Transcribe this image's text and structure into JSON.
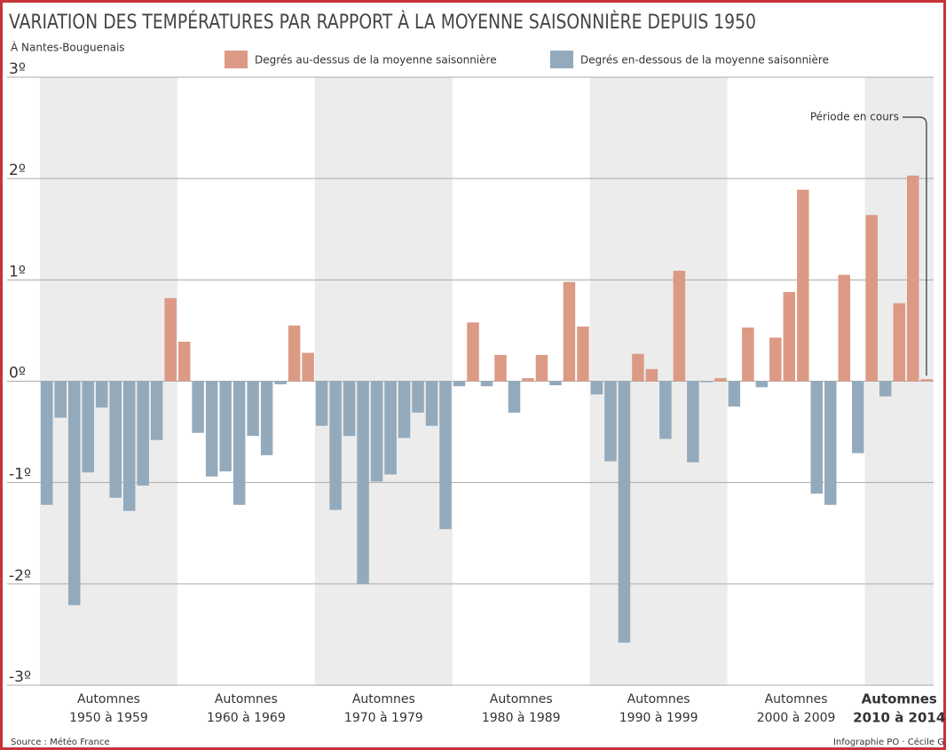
{
  "chart_data": {
    "type": "bar",
    "title": "VARIATION DES TEMPÉRATURES PAR RAPPORT À LA MOYENNE SAISONNIÈRE DEPUIS 1950",
    "subtitle": "À Nantes-Bouguenais",
    "legend": [
      {
        "label": "Degrés au-dessus de la moyenne saisonnière",
        "color": "#dc9a85"
      },
      {
        "label": "Degrés en-dessous de la moyenne saisonnière",
        "color": "#93aabc"
      }
    ],
    "values": [
      -1.22,
      -0.36,
      -2.21,
      -0.9,
      -0.26,
      -1.15,
      -1.28,
      -1.03,
      -0.58,
      0.82,
      0.39,
      -0.51,
      -0.94,
      -0.89,
      -1.22,
      -0.54,
      -0.73,
      -0.03,
      0.55,
      0.28,
      -0.44,
      -1.27,
      -0.54,
      -2.0,
      -0.99,
      -0.92,
      -0.56,
      -0.31,
      -0.44,
      -1.46,
      -0.05,
      0.58,
      -0.05,
      0.26,
      -0.31,
      0.03,
      0.26,
      -0.04,
      0.98,
      0.54,
      -0.13,
      -0.79,
      -2.58,
      0.27,
      0.12,
      -0.57,
      1.09,
      -0.8,
      -0.01,
      0.03,
      -0.25,
      0.53,
      -0.06,
      0.43,
      0.88,
      1.89,
      -1.11,
      -1.22,
      1.05,
      -0.71,
      1.64,
      -0.15,
      0.77,
      2.03,
      0.02
    ],
    "groups": [
      [
        "Automnes",
        "1950 à 1959"
      ],
      [
        "Automnes",
        "1960 à 1969"
      ],
      [
        "Automnes",
        "1970 à 1979"
      ],
      [
        "Automnes",
        "1980 à 1989"
      ],
      [
        "Automnes",
        "1990 à 1999"
      ],
      [
        "Automnes",
        "2000 à 2009"
      ],
      [
        "Automnes",
        "2010 à 2014"
      ]
    ],
    "ylim": [
      -3,
      3
    ],
    "yticks": [
      {
        "value": 3,
        "label": "3º"
      },
      {
        "value": 2,
        "label": "2º"
      },
      {
        "value": 1,
        "label": "1º"
      },
      {
        "value": 0,
        "label": "0º"
      },
      {
        "value": -1,
        "label": "-1º"
      },
      {
        "value": -2,
        "label": "-2º"
      },
      {
        "value": -3,
        "label": "-3º"
      }
    ],
    "grid": true,
    "annotation": "Période en cours",
    "source": "Source : Météo France",
    "credit": "Infographie PO · Cécile G"
  }
}
